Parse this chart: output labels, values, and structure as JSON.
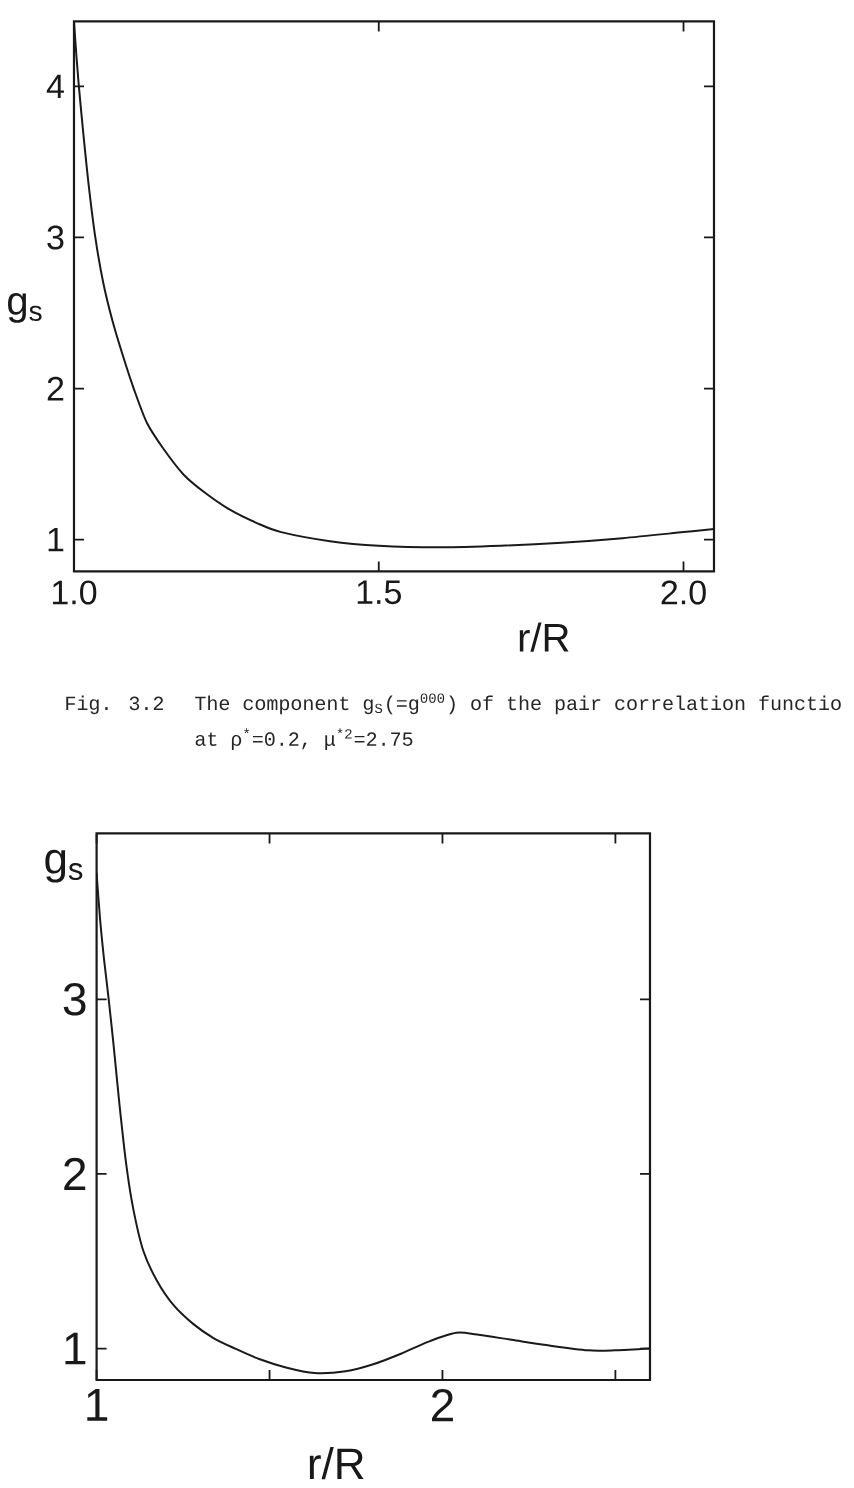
{
  "chart_data": [
    {
      "type": "line",
      "xlabel": "r/R",
      "ylabel": "g$_{s}$",
      "xlim": [
        1.0,
        2.05
      ],
      "ylim": [
        0.79,
        4.43
      ],
      "xticks": [
        {
          "value": 1.0,
          "label": "1.0"
        },
        1.5,
        {
          "value": 2.0,
          "label": "2.0"
        }
      ],
      "yticks": [
        1,
        2,
        3,
        4
      ],
      "x": [
        1.0,
        1.004,
        1.008,
        1.015,
        1.024,
        1.035,
        1.048,
        1.063,
        1.08,
        1.098,
        1.12,
        1.147,
        1.18,
        1.215,
        1.255,
        1.3,
        1.34,
        1.42,
        1.5,
        1.6,
        1.7,
        1.8,
        1.9,
        2.0,
        2.05
      ],
      "series": [
        {
          "color": "#1a1a1a",
          "values": [
            4.43,
            4.2,
            4.0,
            3.7,
            3.35,
            3.0,
            2.7,
            2.45,
            2.22,
            2.0,
            1.77,
            1.6,
            1.43,
            1.31,
            1.2,
            1.11,
            1.05,
            0.99,
            0.96,
            0.95,
            0.96,
            0.98,
            1.01,
            1.05,
            1.07
          ]
        }
      ],
      "annotations": [
        "Fig. 3.2",
        "The component g$_{S}$(=g$^{000}$) of the pair correlation functio",
        "at ρ$^{*}$=0.2, μ$^{*2}$=2.75"
      ]
    },
    {
      "type": "line",
      "xlabel": "r/R",
      "ylabel": "g$_{s}$",
      "xlim": [
        1.0,
        2.6
      ],
      "ylim": [
        0.82,
        3.95
      ],
      "xticks": [
        1,
        {
          "value": 1.5,
          "label": null
        },
        2,
        {
          "value": 2.5,
          "label": null
        }
      ],
      "yticks": [
        1,
        2,
        3
      ],
      "x": [
        1.0,
        1.01,
        1.022,
        1.035,
        1.05,
        1.066,
        1.086,
        1.106,
        1.135,
        1.174,
        1.222,
        1.28,
        1.338,
        1.4,
        1.47,
        1.55,
        1.63,
        1.72,
        1.8,
        1.88,
        1.96,
        2.04,
        2.1,
        2.2,
        2.3,
        2.42,
        2.5,
        2.6
      ],
      "series": [
        {
          "color": "#1a1a1a",
          "values": [
            3.72,
            3.46,
            3.22,
            3.0,
            2.72,
            2.4,
            2.05,
            1.8,
            1.56,
            1.39,
            1.25,
            1.14,
            1.06,
            1.0,
            0.94,
            0.89,
            0.86,
            0.87,
            0.91,
            0.97,
            1.04,
            1.09,
            1.08,
            1.05,
            1.02,
            0.99,
            0.99,
            1.0
          ]
        }
      ]
    }
  ]
}
